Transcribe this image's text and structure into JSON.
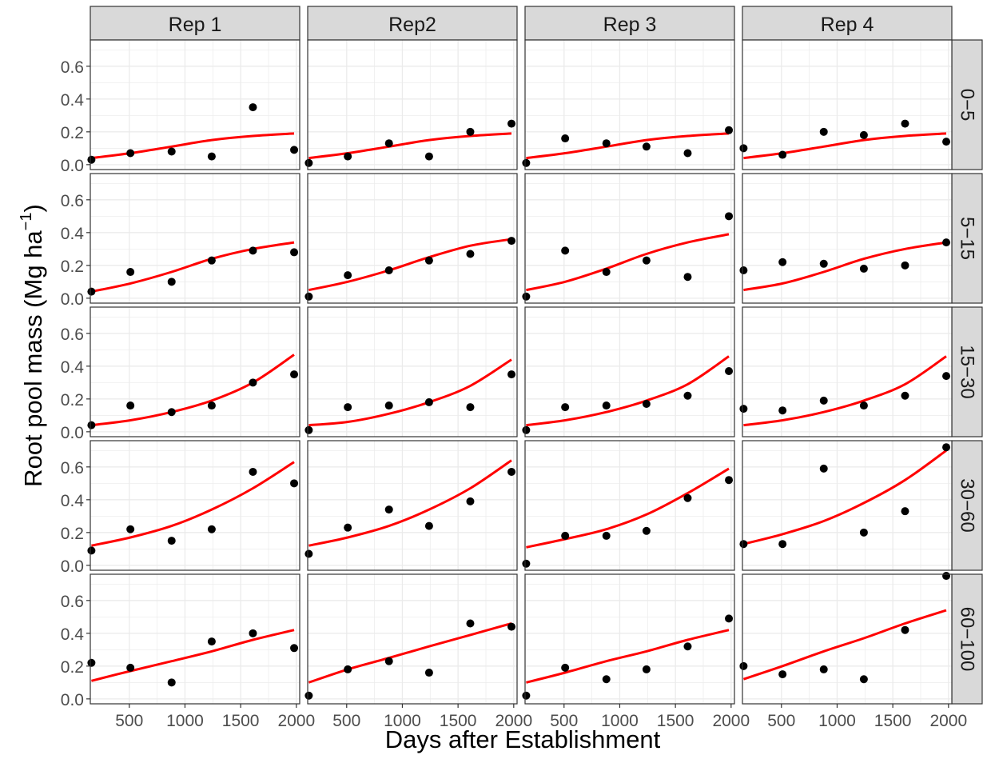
{
  "chart_data": {
    "type": "scatter",
    "xlabel": "Days after Establishment",
    "ylabel_main": "Root pool mass (Mg ha",
    "ylabel_sup": "−1",
    "ylabel_close": ")",
    "xlim": [
      150,
      2030
    ],
    "ylim": [
      -0.03,
      0.76
    ],
    "x_ticks": [
      500,
      1000,
      1500,
      2000
    ],
    "y_ticks": [
      0.0,
      0.2,
      0.4,
      0.6
    ],
    "y_tick_labels": [
      "0.0",
      "0.2",
      "0.4",
      "0.6"
    ],
    "grid": true,
    "colors": {
      "points": "#000000",
      "fit_line": "#ff0000",
      "panel_bg": "#ffffff",
      "grid": "#ebebeb",
      "strip_bg": "#d9d9d9",
      "border": "#333333"
    },
    "columns": [
      "Rep 1",
      "Rep2",
      "Rep 3",
      "Rep 4"
    ],
    "rows": [
      "0−5",
      "5−15",
      "15−30",
      "30−60",
      "60−100"
    ],
    "x_days": [
      160,
      510,
      880,
      1240,
      1610,
      1980
    ],
    "panels": [
      [
        {
          "points": [
            0.03,
            0.07,
            0.08,
            0.05,
            0.35,
            0.09
          ],
          "fit": [
            0.04,
            0.07,
            0.11,
            0.15,
            0.175,
            0.19
          ]
        },
        {
          "points": [
            0.01,
            0.05,
            0.13,
            0.05,
            0.2,
            0.25
          ],
          "fit": [
            0.04,
            0.07,
            0.11,
            0.15,
            0.175,
            0.19
          ]
        },
        {
          "points": [
            0.01,
            0.16,
            0.13,
            0.11,
            0.07,
            0.21
          ],
          "fit": [
            0.04,
            0.07,
            0.11,
            0.15,
            0.175,
            0.19
          ]
        },
        {
          "points": [
            0.1,
            0.06,
            0.2,
            0.18,
            0.25,
            0.14
          ],
          "fit": [
            0.04,
            0.07,
            0.11,
            0.15,
            0.175,
            0.19
          ]
        }
      ],
      [
        {
          "points": [
            0.04,
            0.16,
            0.1,
            0.23,
            0.29,
            0.28
          ],
          "fit": [
            0.04,
            0.09,
            0.16,
            0.24,
            0.3,
            0.34
          ]
        },
        {
          "points": [
            0.01,
            0.14,
            0.17,
            0.23,
            0.27,
            0.35
          ],
          "fit": [
            0.05,
            0.1,
            0.17,
            0.25,
            0.32,
            0.36
          ]
        },
        {
          "points": [
            0.01,
            0.29,
            0.16,
            0.23,
            0.13,
            0.5
          ],
          "fit": [
            0.05,
            0.1,
            0.18,
            0.27,
            0.34,
            0.39
          ]
        },
        {
          "points": [
            0.17,
            0.22,
            0.21,
            0.18,
            0.2,
            0.34
          ],
          "fit": [
            0.05,
            0.09,
            0.16,
            0.24,
            0.3,
            0.34
          ]
        }
      ],
      [
        {
          "points": [
            0.04,
            0.16,
            0.12,
            0.16,
            0.3,
            0.35
          ],
          "fit": [
            0.04,
            0.07,
            0.12,
            0.19,
            0.3,
            0.47
          ]
        },
        {
          "points": [
            0.01,
            0.15,
            0.16,
            0.18,
            0.15,
            0.35
          ],
          "fit": [
            0.04,
            0.06,
            0.11,
            0.18,
            0.28,
            0.44
          ]
        },
        {
          "points": [
            0.01,
            0.15,
            0.16,
            0.17,
            0.22,
            0.37
          ],
          "fit": [
            0.04,
            0.07,
            0.12,
            0.19,
            0.29,
            0.46
          ]
        },
        {
          "points": [
            0.14,
            0.13,
            0.19,
            0.16,
            0.22,
            0.34
          ],
          "fit": [
            0.04,
            0.07,
            0.12,
            0.19,
            0.29,
            0.46
          ]
        }
      ],
      [
        {
          "points": [
            0.09,
            0.22,
            0.15,
            0.22,
            0.57,
            0.5
          ],
          "fit": [
            0.12,
            0.17,
            0.24,
            0.34,
            0.47,
            0.63
          ]
        },
        {
          "points": [
            0.07,
            0.23,
            0.34,
            0.24,
            0.39,
            0.57
          ],
          "fit": [
            0.12,
            0.17,
            0.24,
            0.34,
            0.47,
            0.64
          ]
        },
        {
          "points": [
            0.01,
            0.18,
            0.18,
            0.21,
            0.41,
            0.52
          ],
          "fit": [
            0.11,
            0.16,
            0.22,
            0.31,
            0.44,
            0.59
          ]
        },
        {
          "points": [
            0.13,
            0.13,
            0.59,
            0.2,
            0.33,
            0.72
          ],
          "fit": [
            0.13,
            0.19,
            0.27,
            0.38,
            0.52,
            0.7
          ]
        }
      ],
      [
        {
          "points": [
            0.22,
            0.19,
            0.1,
            0.35,
            0.4,
            0.31
          ],
          "fit": [
            0.11,
            0.17,
            0.23,
            0.29,
            0.36,
            0.42
          ]
        },
        {
          "points": [
            0.02,
            0.18,
            0.23,
            0.16,
            0.46,
            0.44
          ],
          "fit": [
            0.1,
            0.18,
            0.25,
            0.32,
            0.39,
            0.46
          ]
        },
        {
          "points": [
            0.02,
            0.19,
            0.12,
            0.18,
            0.32,
            0.49
          ],
          "fit": [
            0.1,
            0.16,
            0.23,
            0.29,
            0.36,
            0.42
          ]
        },
        {
          "points": [
            0.2,
            0.15,
            0.18,
            0.12,
            0.42,
            0.75
          ],
          "fit": [
            0.12,
            0.2,
            0.29,
            0.37,
            0.46,
            0.54
          ]
        }
      ]
    ]
  }
}
